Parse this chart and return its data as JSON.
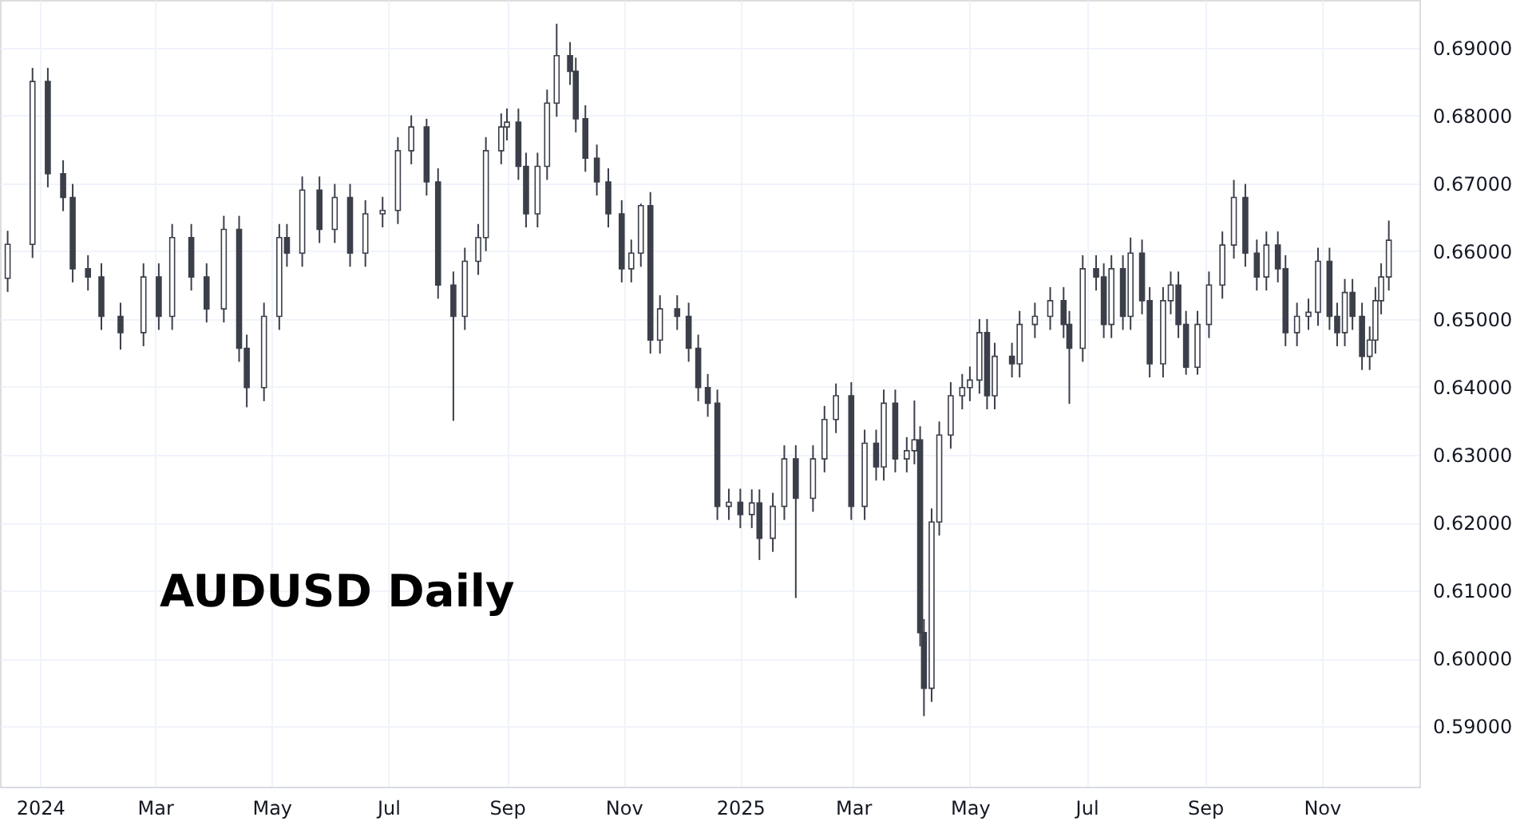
{
  "chart_data": {
    "type": "candlestick",
    "annotations": [
      "AUDUSD Daily"
    ],
    "color": "#3b3f4a",
    "grid": true,
    "xlim": [
      "2023-12-11",
      "2025-12-22"
    ],
    "ylim": [
      0.5811,
      0.697
    ],
    "xticks": [
      {
        "value": "2024-01-01",
        "label": "2024"
      },
      {
        "value": "2024-03-01",
        "label": "Mar"
      },
      {
        "value": "2024-05-01",
        "label": "May"
      },
      {
        "value": "2024-07-01",
        "label": "Jul"
      },
      {
        "value": "2024-09-01",
        "label": "Sep"
      },
      {
        "value": "2024-11-01",
        "label": "Nov"
      },
      {
        "value": "2025-01-01",
        "label": "2025"
      },
      {
        "value": "2025-03-01",
        "label": "Mar"
      },
      {
        "value": "2025-05-01",
        "label": "May"
      },
      {
        "value": "2025-07-01",
        "label": "Jul"
      },
      {
        "value": "2025-09-01",
        "label": "Sep"
      },
      {
        "value": "2025-11-01",
        "label": "Nov"
      }
    ],
    "yticks": [
      {
        "value": 0.59,
        "label": "0.59000"
      },
      {
        "value": 0.6,
        "label": "0.60000"
      },
      {
        "value": 0.61,
        "label": "0.61000"
      },
      {
        "value": 0.62,
        "label": "0.62000"
      },
      {
        "value": 0.63,
        "label": "0.63000"
      },
      {
        "value": 0.64,
        "label": "0.64000"
      },
      {
        "value": 0.65,
        "label": "0.65000"
      },
      {
        "value": 0.66,
        "label": "0.66000"
      },
      {
        "value": 0.67,
        "label": "0.67000"
      },
      {
        "value": 0.68,
        "label": "0.68000"
      },
      {
        "value": 0.69,
        "label": "0.69000"
      }
    ],
    "x": [
      "2023-12-15",
      "2023-12-28",
      "2024-01-05",
      "2024-01-13",
      "2024-01-18",
      "2024-01-26",
      "2024-02-02",
      "2024-02-12",
      "2024-02-24",
      "2024-03-03",
      "2024-03-10",
      "2024-03-20",
      "2024-03-28",
      "2024-04-06",
      "2024-04-14",
      "2024-04-18",
      "2024-04-27",
      "2024-05-05",
      "2024-05-09",
      "2024-05-17",
      "2024-05-26",
      "2024-06-03",
      "2024-06-11",
      "2024-06-19",
      "2024-06-28",
      "2024-07-06",
      "2024-07-13",
      "2024-07-21",
      "2024-07-27",
      "2024-08-04",
      "2024-08-10",
      "2024-08-17",
      "2024-08-21",
      "2024-08-29",
      "2024-09-01",
      "2024-09-07",
      "2024-09-11",
      "2024-09-17",
      "2024-09-22",
      "2024-09-27",
      "2024-10-04",
      "2024-10-07",
      "2024-10-12",
      "2024-10-18",
      "2024-10-24",
      "2024-10-31",
      "2024-11-05",
      "2024-11-10",
      "2024-11-15",
      "2024-11-20",
      "2024-11-29",
      "2024-12-05",
      "2024-12-10",
      "2024-12-15",
      "2024-12-20",
      "2024-12-26",
      "2025-01-01",
      "2025-01-07",
      "2025-01-11",
      "2025-01-18",
      "2025-01-24",
      "2025-01-30",
      "2025-02-08",
      "2025-02-14",
      "2025-02-20",
      "2025-02-28",
      "2025-03-07",
      "2025-03-13",
      "2025-03-17",
      "2025-03-23",
      "2025-03-29",
      "2025-04-02",
      "2025-04-05",
      "2025-04-07",
      "2025-04-11",
      "2025-04-15",
      "2025-04-21",
      "2025-04-27",
      "2025-05-01",
      "2025-05-06",
      "2025-05-10",
      "2025-05-14",
      "2025-05-23",
      "2025-05-27",
      "2025-06-04",
      "2025-06-12",
      "2025-06-19",
      "2025-06-22",
      "2025-06-29",
      "2025-07-06",
      "2025-07-10",
      "2025-07-14",
      "2025-07-20",
      "2025-07-24",
      "2025-07-30",
      "2025-08-03",
      "2025-08-10",
      "2025-08-14",
      "2025-08-18",
      "2025-08-22",
      "2025-08-28",
      "2025-09-03",
      "2025-09-10",
      "2025-09-16",
      "2025-09-22",
      "2025-09-28",
      "2025-10-03",
      "2025-10-09",
      "2025-10-13",
      "2025-10-19",
      "2025-10-25",
      "2025-10-30",
      "2025-11-05",
      "2025-11-09",
      "2025-11-13",
      "2025-11-17",
      "2025-11-22",
      "2025-11-26",
      "2025-11-29",
      "2025-12-02",
      "2025-12-06"
    ],
    "ohlc": [
      [
        0.656,
        0.663,
        0.654,
        0.661
      ],
      [
        0.661,
        0.687,
        0.659,
        0.685
      ],
      [
        0.685,
        0.687,
        0.6694,
        0.6714
      ],
      [
        0.6714,
        0.6734,
        0.6659,
        0.6679
      ],
      [
        0.6679,
        0.6699,
        0.6554,
        0.6574
      ],
      [
        0.6574,
        0.6594,
        0.6542,
        0.6562
      ],
      [
        0.6562,
        0.6582,
        0.6484,
        0.6504
      ],
      [
        0.6504,
        0.6524,
        0.6455,
        0.648
      ],
      [
        0.648,
        0.6582,
        0.646,
        0.6562
      ],
      [
        0.6562,
        0.6582,
        0.6484,
        0.6504
      ],
      [
        0.6504,
        0.664,
        0.6484,
        0.662
      ],
      [
        0.662,
        0.664,
        0.6542,
        0.6562
      ],
      [
        0.6562,
        0.6582,
        0.6495,
        0.6515
      ],
      [
        0.6515,
        0.6652,
        0.6495,
        0.6632
      ],
      [
        0.6632,
        0.6652,
        0.6437,
        0.6457
      ],
      [
        0.6457,
        0.6477,
        0.637,
        0.6399
      ],
      [
        0.6399,
        0.6524,
        0.6379,
        0.6504
      ],
      [
        0.6504,
        0.664,
        0.6484,
        0.662
      ],
      [
        0.662,
        0.664,
        0.6577,
        0.6597
      ],
      [
        0.6597,
        0.671,
        0.6577,
        0.669
      ],
      [
        0.669,
        0.671,
        0.6612,
        0.6632
      ],
      [
        0.6632,
        0.6699,
        0.6612,
        0.6679
      ],
      [
        0.6679,
        0.6699,
        0.6577,
        0.6597
      ],
      [
        0.6597,
        0.6675,
        0.6577,
        0.6655
      ],
      [
        0.6655,
        0.668,
        0.6635,
        0.666
      ],
      [
        0.666,
        0.6768,
        0.664,
        0.6748
      ],
      [
        0.6748,
        0.68,
        0.6728,
        0.6783
      ],
      [
        0.6783,
        0.6795,
        0.6682,
        0.6702
      ],
      [
        0.6702,
        0.6722,
        0.653,
        0.655
      ],
      [
        0.655,
        0.657,
        0.635,
        0.6504
      ],
      [
        0.6504,
        0.6605,
        0.6484,
        0.6585
      ],
      [
        0.6585,
        0.664,
        0.6565,
        0.662
      ],
      [
        0.662,
        0.6768,
        0.66,
        0.6748
      ],
      [
        0.6748,
        0.6803,
        0.6728,
        0.6783
      ],
      [
        0.6783,
        0.681,
        0.6763,
        0.679
      ],
      [
        0.679,
        0.681,
        0.6705,
        0.6725
      ],
      [
        0.6725,
        0.6745,
        0.6635,
        0.6655
      ],
      [
        0.6655,
        0.6745,
        0.6635,
        0.6725
      ],
      [
        0.6725,
        0.6838,
        0.6705,
        0.6818
      ],
      [
        0.6818,
        0.6935,
        0.6798,
        0.6888
      ],
      [
        0.6888,
        0.6908,
        0.6845,
        0.6865
      ],
      [
        0.6865,
        0.6885,
        0.6775,
        0.6795
      ],
      [
        0.6795,
        0.6815,
        0.6717,
        0.6737
      ],
      [
        0.6737,
        0.6757,
        0.6682,
        0.6702
      ],
      [
        0.6702,
        0.6722,
        0.6635,
        0.6655
      ],
      [
        0.6655,
        0.6675,
        0.6554,
        0.6574
      ],
      [
        0.6574,
        0.6617,
        0.6554,
        0.6597
      ],
      [
        0.6597,
        0.667,
        0.6577,
        0.6667
      ],
      [
        0.6667,
        0.6687,
        0.6449,
        0.6469
      ],
      [
        0.6469,
        0.6535,
        0.6449,
        0.6515
      ],
      [
        0.6515,
        0.6535,
        0.6484,
        0.6504
      ],
      [
        0.6504,
        0.6524,
        0.6437,
        0.6457
      ],
      [
        0.6457,
        0.6477,
        0.6379,
        0.6399
      ],
      [
        0.6399,
        0.6419,
        0.6356,
        0.6376
      ],
      [
        0.6376,
        0.6396,
        0.6204,
        0.6224
      ],
      [
        0.6224,
        0.625,
        0.6204,
        0.623
      ],
      [
        0.623,
        0.625,
        0.6192,
        0.6212
      ],
      [
        0.6212,
        0.6249,
        0.6192,
        0.6229
      ],
      [
        0.6229,
        0.6249,
        0.6145,
        0.6177
      ],
      [
        0.6177,
        0.6244,
        0.6157,
        0.6224
      ],
      [
        0.6224,
        0.6314,
        0.6204,
        0.6294
      ],
      [
        0.6294,
        0.6314,
        0.6089,
        0.6236
      ],
      [
        0.6236,
        0.6314,
        0.6216,
        0.6294
      ],
      [
        0.6294,
        0.6372,
        0.6274,
        0.6352
      ],
      [
        0.6352,
        0.6405,
        0.6332,
        0.6387
      ],
      [
        0.6387,
        0.6407,
        0.6204,
        0.6224
      ],
      [
        0.6224,
        0.6337,
        0.6204,
        0.6317
      ],
      [
        0.6317,
        0.6337,
        0.6262,
        0.6282
      ],
      [
        0.6282,
        0.6396,
        0.6262,
        0.6376
      ],
      [
        0.6376,
        0.6396,
        0.6274,
        0.6294
      ],
      [
        0.6294,
        0.6326,
        0.6274,
        0.6306
      ],
      [
        0.6306,
        0.638,
        0.6286,
        0.6322
      ],
      [
        0.6322,
        0.6342,
        0.6018,
        0.6038
      ],
      [
        0.6038,
        0.6058,
        0.5915,
        0.5956
      ],
      [
        0.5956,
        0.6221,
        0.5936,
        0.6201
      ],
      [
        0.6201,
        0.6349,
        0.6181,
        0.6329
      ],
      [
        0.6329,
        0.6407,
        0.6309,
        0.6387
      ],
      [
        0.6387,
        0.6419,
        0.6367,
        0.6399
      ],
      [
        0.6399,
        0.643,
        0.6379,
        0.641
      ],
      [
        0.641,
        0.65,
        0.639,
        0.648
      ],
      [
        0.648,
        0.65,
        0.6367,
        0.6387
      ],
      [
        0.6387,
        0.6465,
        0.6367,
        0.6445
      ],
      [
        0.6445,
        0.6465,
        0.6414,
        0.6434
      ],
      [
        0.6434,
        0.6512,
        0.6414,
        0.6492
      ],
      [
        0.6492,
        0.6524,
        0.6472,
        0.6504
      ],
      [
        0.6504,
        0.6547,
        0.6484,
        0.6527
      ],
      [
        0.6527,
        0.6547,
        0.6472,
        0.6492
      ],
      [
        0.6492,
        0.6512,
        0.6375,
        0.6457
      ],
      [
        0.6457,
        0.6594,
        0.6437,
        0.6574
      ],
      [
        0.6574,
        0.6594,
        0.6542,
        0.6562
      ],
      [
        0.6562,
        0.6582,
        0.6472,
        0.6492
      ],
      [
        0.6492,
        0.6594,
        0.6472,
        0.6574
      ],
      [
        0.6574,
        0.6594,
        0.6484,
        0.6504
      ],
      [
        0.6504,
        0.662,
        0.6484,
        0.6597
      ],
      [
        0.6597,
        0.6617,
        0.6507,
        0.6527
      ],
      [
        0.6527,
        0.6547,
        0.6414,
        0.6434
      ],
      [
        0.6434,
        0.6547,
        0.6414,
        0.6527
      ],
      [
        0.6527,
        0.657,
        0.6507,
        0.655
      ],
      [
        0.655,
        0.657,
        0.6472,
        0.6492
      ],
      [
        0.6492,
        0.6512,
        0.6418,
        0.6429
      ],
      [
        0.6429,
        0.6512,
        0.6418,
        0.6492
      ],
      [
        0.6492,
        0.657,
        0.6472,
        0.655
      ],
      [
        0.655,
        0.6629,
        0.653,
        0.6609
      ],
      [
        0.6609,
        0.6705,
        0.6589,
        0.6679
      ],
      [
        0.6679,
        0.6699,
        0.6577,
        0.6597
      ],
      [
        0.6597,
        0.6617,
        0.6542,
        0.6562
      ],
      [
        0.6562,
        0.6629,
        0.6542,
        0.6609
      ],
      [
        0.6609,
        0.6629,
        0.6554,
        0.6574
      ],
      [
        0.6574,
        0.6594,
        0.646,
        0.648
      ],
      [
        0.648,
        0.6524,
        0.646,
        0.6504
      ],
      [
        0.6504,
        0.653,
        0.6484,
        0.651
      ],
      [
        0.651,
        0.6605,
        0.649,
        0.6585
      ],
      [
        0.6585,
        0.6605,
        0.6484,
        0.6504
      ],
      [
        0.6504,
        0.6524,
        0.646,
        0.648
      ],
      [
        0.648,
        0.6559,
        0.646,
        0.6539
      ],
      [
        0.6539,
        0.6559,
        0.6484,
        0.6504
      ],
      [
        0.6504,
        0.6524,
        0.6425,
        0.6445
      ],
      [
        0.6445,
        0.6489,
        0.6425,
        0.6469
      ],
      [
        0.6469,
        0.6547,
        0.6449,
        0.6527
      ],
      [
        0.6527,
        0.6582,
        0.6507,
        0.6562
      ],
      [
        0.6562,
        0.6645,
        0.6542,
        0.6616
      ]
    ]
  }
}
